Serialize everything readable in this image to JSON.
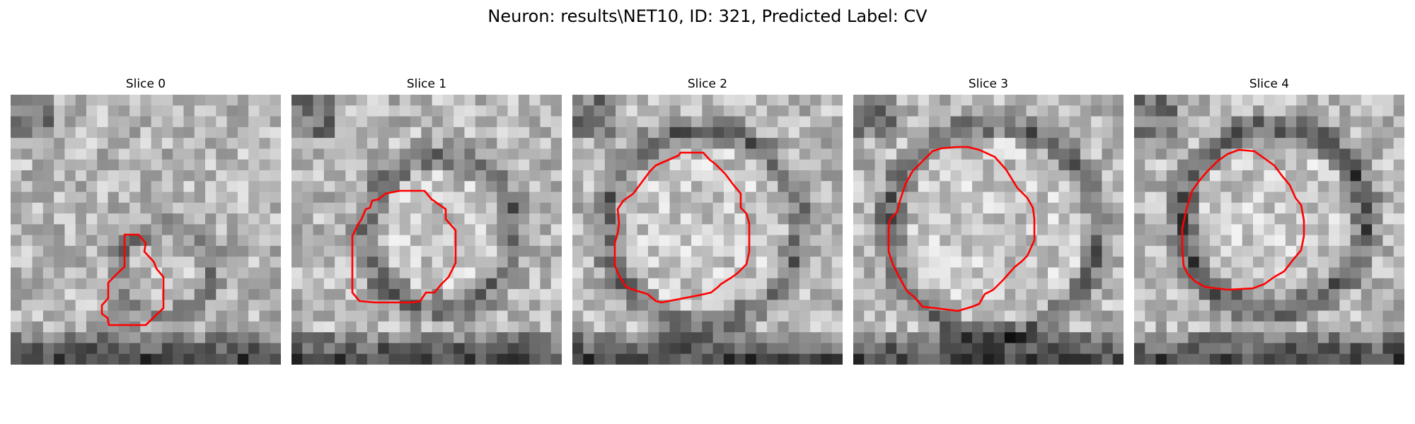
{
  "figure": {
    "title": "Neuron: results\\NET10, ID: 321, Predicted Label: CV"
  },
  "slices": [
    {
      "title": "Slice 0",
      "image": "grayscale EM patch",
      "seed": 11
    },
    {
      "title": "Slice 1",
      "image": "grayscale EM patch",
      "seed": 23
    },
    {
      "title": "Slice 2",
      "image": "grayscale EM patch",
      "seed": 37
    },
    {
      "title": "Slice 3",
      "image": "grayscale EM patch",
      "seed": 41
    },
    {
      "title": "Slice 4",
      "image": "grayscale EM patch",
      "seed": 53
    }
  ],
  "colors": {
    "contour": "#ff0000",
    "background": "#ffffff"
  }
}
